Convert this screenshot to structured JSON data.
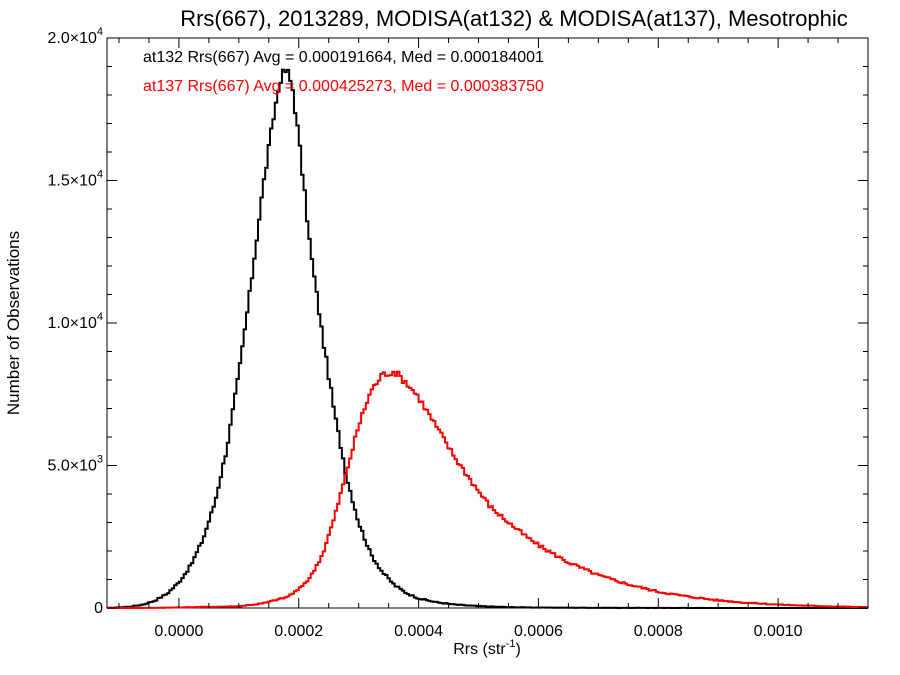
{
  "chart_data": {
    "type": "line",
    "style": "step-histogram",
    "title": "Rrs(667), 2013289, MODISA(at132) & MODISA(at137), Mesotrophic",
    "xlabel": "Rrs (str",
    "xlabel_sup": "-1",
    "xlabel_close": ")",
    "ylabel": "Number of Observations",
    "xlim": [
      -0.00012,
      0.00115
    ],
    "ylim": [
      0,
      20000
    ],
    "x_ticks": [
      {
        "value": 0.0,
        "label": "0.0000"
      },
      {
        "value": 0.0002,
        "label": "0.0002"
      },
      {
        "value": 0.0004,
        "label": "0.0004"
      },
      {
        "value": 0.0006,
        "label": "0.0006"
      },
      {
        "value": 0.0008,
        "label": "0.0008"
      },
      {
        "value": 0.001,
        "label": "0.0010"
      }
    ],
    "y_ticks": [
      {
        "value": 0,
        "label": "0",
        "sup": ""
      },
      {
        "value": 5000,
        "label": "5.0×10",
        "sup": "3"
      },
      {
        "value": 10000,
        "label": "1.0×10",
        "sup": "4"
      },
      {
        "value": 15000,
        "label": "1.5×10",
        "sup": "4"
      },
      {
        "value": 20000,
        "label": "2.0×10",
        "sup": "4"
      }
    ],
    "grid": false,
    "legend_placement": "top-left",
    "series": [
      {
        "name": "at132",
        "color": "#000000",
        "stat_text": "at132 Rrs(667) Avg = 0.000191664, Med = 0.000184001",
        "x": [
          -0.00012,
          -0.0001,
          -8e-05,
          -6e-05,
          -4e-05,
          -2e-05,
          0.0,
          2e-05,
          4e-05,
          6e-05,
          8e-05,
          0.0001,
          0.00012,
          0.00014,
          0.00016,
          0.00017,
          0.00018,
          0.00019,
          0.0002,
          0.00021,
          0.00022,
          0.00024,
          0.00026,
          0.00028,
          0.0003,
          0.00032,
          0.00034,
          0.00036,
          0.00038,
          0.0004,
          0.00043,
          0.00046,
          0.0005,
          0.00055,
          0.0006,
          0.0007,
          0.0008,
          0.0009,
          0.001,
          0.00115
        ],
        "y": [
          0,
          20,
          50,
          120,
          260,
          500,
          900,
          1500,
          2400,
          3700,
          5600,
          8200,
          11300,
          14700,
          17500,
          18600,
          18900,
          18200,
          16500,
          14500,
          12500,
          9500,
          6800,
          4600,
          3000,
          1900,
          1250,
          800,
          520,
          340,
          200,
          120,
          65,
          30,
          15,
          6,
          3,
          1,
          0,
          0
        ]
      },
      {
        "name": "at137",
        "color": "#ff0000",
        "stat_text": "at137 Rrs(667) Avg = 0.000425273, Med = 0.000383750",
        "x": [
          -0.00012,
          -4e-05,
          0.0,
          0.0001,
          0.00014,
          0.00018,
          0.0002,
          0.00022,
          0.00024,
          0.00026,
          0.00028,
          0.0003,
          0.00032,
          0.00034,
          0.00036,
          0.00038,
          0.0004,
          0.00042,
          0.00044,
          0.00046,
          0.00048,
          0.0005,
          0.00052,
          0.00055,
          0.00058,
          0.0006,
          0.00065,
          0.0007,
          0.00075,
          0.0008,
          0.00085,
          0.0009,
          0.00095,
          0.001,
          0.00105,
          0.0011,
          0.00115
        ],
        "y": [
          0,
          5,
          20,
          60,
          160,
          380,
          650,
          1100,
          1900,
          3200,
          4800,
          6400,
          7600,
          8200,
          8300,
          7900,
          7400,
          6700,
          6000,
          5300,
          4700,
          4100,
          3550,
          3000,
          2500,
          2200,
          1600,
          1150,
          830,
          570,
          400,
          270,
          180,
          120,
          80,
          50,
          30
        ]
      }
    ]
  }
}
